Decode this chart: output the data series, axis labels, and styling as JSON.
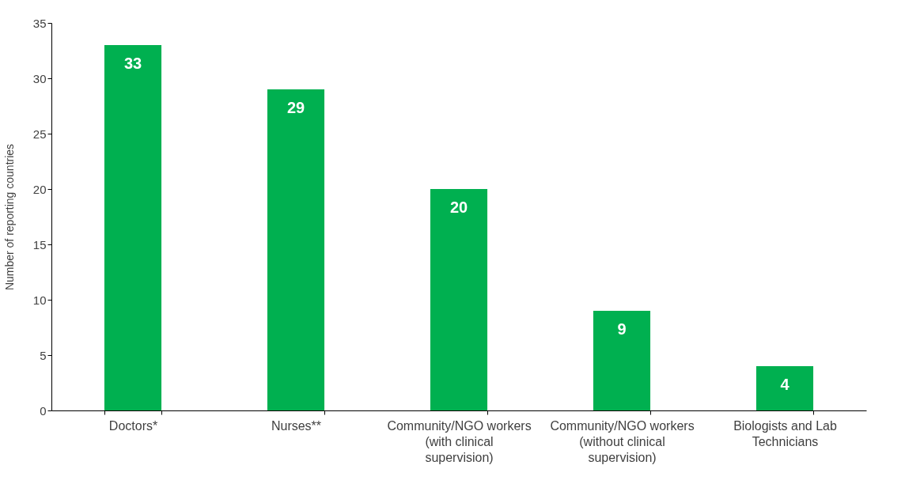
{
  "chart_data": {
    "type": "bar",
    "ylabel": "Number of reporting countries",
    "categories": [
      "Doctors*",
      "Nurses**",
      "Community/NGO workers (with clinical supervision)",
      "Community/NGO workers (without clinical supervision)",
      "Biologists and Lab Technicians"
    ],
    "values": [
      33,
      29,
      20,
      9,
      4
    ],
    "color": "#00b050",
    "ylim": [
      0,
      35
    ],
    "yticks": [
      0,
      5,
      10,
      15,
      20,
      25,
      30,
      35
    ],
    "grid": false,
    "data_labels": true
  }
}
